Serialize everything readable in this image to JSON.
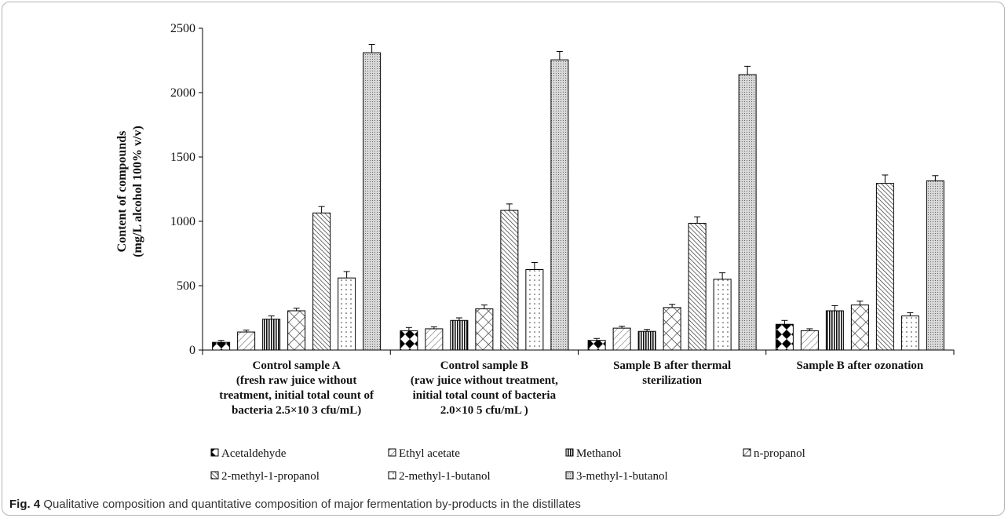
{
  "chart_data": {
    "type": "bar",
    "title": "",
    "xlabel": "",
    "ylabel_line1": "Content  of  compounds",
    "ylabel_line2": "(mg/L  alcohol 100% v/v)",
    "ylim": [
      0,
      2500
    ],
    "yticks": [
      0,
      500,
      1000,
      1500,
      2000,
      2500
    ],
    "categories": [
      [
        "Control sample A",
        "(fresh raw juice without",
        "treatment, initial total count of",
        "bacteria 2.5×10 3 cfu/mL)"
      ],
      [
        "Control sample B",
        "(raw juice without treatment,",
        "initial total count of bacteria",
        "2.0×10 5 cfu/mL )"
      ],
      [
        "Sample B after thermal",
        "sterilization"
      ],
      [
        "Sample B after ozonation"
      ]
    ],
    "legend_position": "bottom",
    "series": [
      {
        "name": "Acetaldehyde",
        "pattern": "diamond",
        "values": [
          60,
          150,
          75,
          200
        ],
        "errors": [
          15,
          25,
          15,
          30
        ]
      },
      {
        "name": "Ethyl acetate",
        "pattern": "diagonal-light",
        "values": [
          140,
          165,
          170,
          150
        ],
        "errors": [
          15,
          15,
          15,
          15
        ]
      },
      {
        "name": "Methanol",
        "pattern": "vertical",
        "values": [
          240,
          230,
          145,
          305
        ],
        "errors": [
          25,
          20,
          15,
          40
        ]
      },
      {
        "name": "n-propanol",
        "pattern": "diagonal-wide",
        "values": [
          305,
          320,
          330,
          350
        ],
        "errors": [
          20,
          30,
          25,
          30
        ]
      },
      {
        "name": "2-methyl-1-propanol",
        "pattern": "diagonal-dense",
        "values": [
          1065,
          1085,
          985,
          1295
        ],
        "errors": [
          50,
          50,
          50,
          65
        ]
      },
      {
        "name": "2-methyl-1-butanol",
        "pattern": "dots",
        "values": [
          560,
          625,
          550,
          265
        ],
        "errors": [
          50,
          55,
          50,
          25
        ]
      },
      {
        "name": "3-methyl-1-butanol",
        "pattern": "stipple",
        "values": [
          2310,
          2255,
          2140,
          1315
        ],
        "errors": [
          65,
          65,
          65,
          40
        ]
      }
    ]
  },
  "caption": {
    "label": "Fig. 4",
    "text": "Qualitative composition and quantitative composition of major fermentation by-products in the distillates"
  }
}
